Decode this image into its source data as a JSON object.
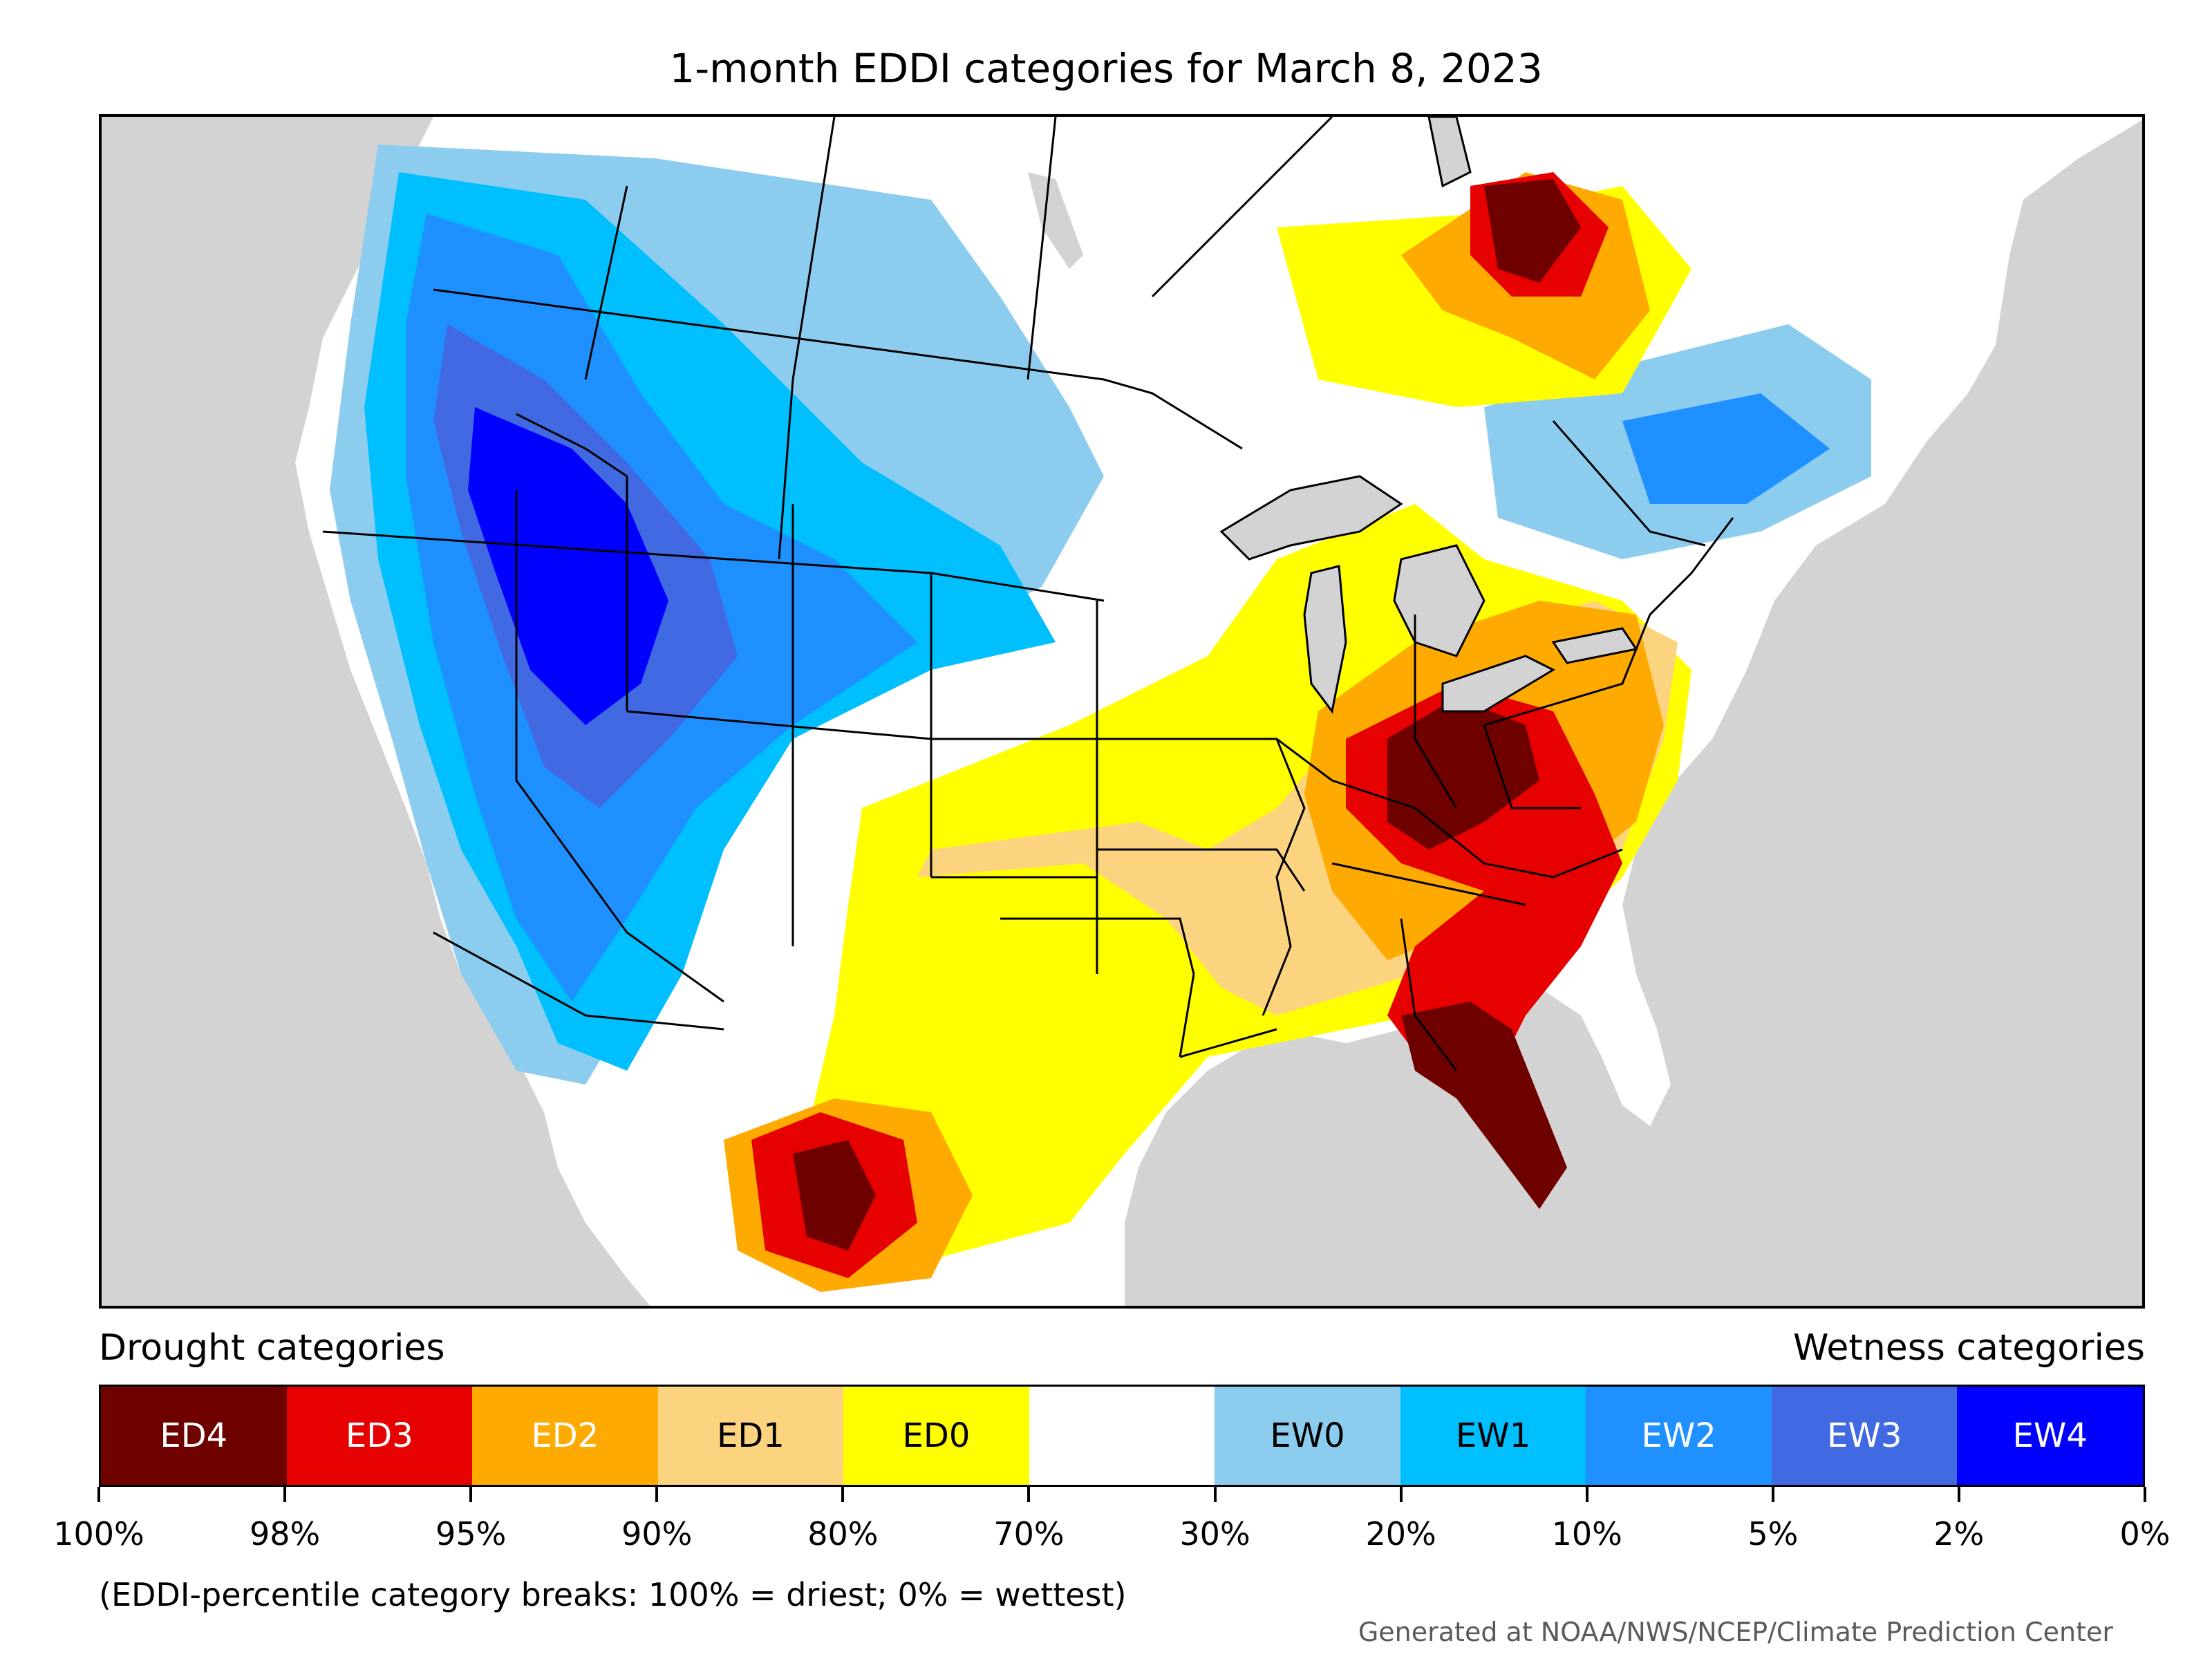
{
  "title": "1-month EDDI categories for March 8, 2023",
  "legend": {
    "left_heading": "Drought categories",
    "right_heading": "Wetness categories",
    "categories": [
      {
        "label": "ED4",
        "color": "#6e0000",
        "text_color": "#ffffff"
      },
      {
        "label": "ED3",
        "color": "#e60000",
        "text_color": "#ffffff"
      },
      {
        "label": "ED2",
        "color": "#ffaa00",
        "text_color": "#ffffff"
      },
      {
        "label": "ED1",
        "color": "#fcd37f",
        "text_color": "#000000"
      },
      {
        "label": "ED0",
        "color": "#ffff00",
        "text_color": "#000000"
      },
      {
        "label": "",
        "color": "#ffffff",
        "text_color": "#000000"
      },
      {
        "label": "EW0",
        "color": "#8ccdef",
        "text_color": "#000000"
      },
      {
        "label": "EW1",
        "color": "#00bfff",
        "text_color": "#000000"
      },
      {
        "label": "EW2",
        "color": "#1e90ff",
        "text_color": "#ffffff"
      },
      {
        "label": "EW3",
        "color": "#4169e1",
        "text_color": "#ffffff"
      },
      {
        "label": "EW4",
        "color": "#0000ff",
        "text_color": "#ffffff"
      }
    ],
    "breaks": [
      "100%",
      "98%",
      "95%",
      "90%",
      "80%",
      "70%",
      "30%",
      "20%",
      "10%",
      "5%",
      "2%",
      "0%"
    ]
  },
  "footnote": "(EDDI-percentile category breaks: 100% = driest; 0% = wettest)",
  "credit": "Generated at NOAA/NWS/NCEP/Climate Prediction Center",
  "map": {
    "land_color": "#ffffff",
    "water_color": "#d3d3d3",
    "region": "Contiguous United States with southern Canada and northern Mexico"
  }
}
